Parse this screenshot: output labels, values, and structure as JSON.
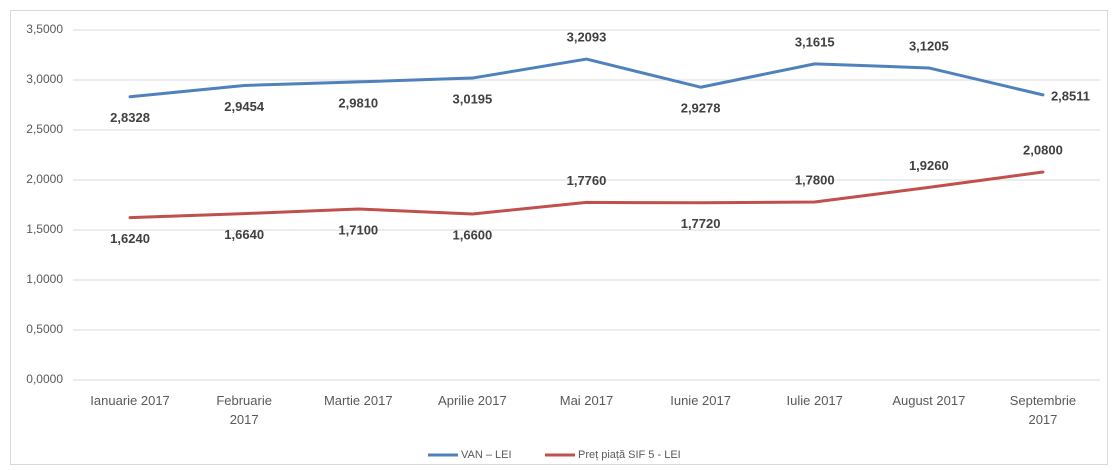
{
  "chart_data": {
    "type": "line",
    "categories": [
      "Ianuarie 2017",
      "Februarie 2017",
      "Martie 2017",
      "Aprilie 2017",
      "Mai 2017",
      "Iunie 2017",
      "Iulie 2017",
      "August 2017",
      "Septembrie 2017"
    ],
    "series": [
      {
        "name": "VAN – LEI",
        "color": "#4f81bd",
        "values": [
          2.8328,
          2.9454,
          2.981,
          3.0195,
          3.2093,
          2.9278,
          3.1615,
          3.1205,
          2.8511
        ],
        "value_labels": [
          "2,8328",
          "2,9454",
          "2,9810",
          "3,0195",
          "3,2093",
          "2,9278",
          "3,1615",
          "3,1205",
          "2,8511"
        ]
      },
      {
        "name": "Preț piață SIF 5 - LEI",
        "color": "#c0504d",
        "values": [
          1.624,
          1.664,
          1.71,
          1.66,
          1.776,
          1.772,
          1.78,
          1.926,
          2.08
        ],
        "value_labels": [
          "1,6240",
          "1,6640",
          "1,7100",
          "1,6600",
          "1,7760",
          "1,7720",
          "1,7800",
          "1,9260",
          "2,0800"
        ]
      }
    ],
    "ylim": [
      0,
      3.5
    ],
    "yticks": [
      {
        "value": 0,
        "label": "0,0000"
      },
      {
        "value": 0.5,
        "label": "0,5000"
      },
      {
        "value": 1,
        "label": "1,0000"
      },
      {
        "value": 1.5,
        "label": "1,5000"
      },
      {
        "value": 2,
        "label": "2,0000"
      },
      {
        "value": 2.5,
        "label": "2,5000"
      },
      {
        "value": 3,
        "label": "3,0000"
      },
      {
        "value": 3.5,
        "label": "3,5000"
      }
    ],
    "grid": true,
    "legend": "bottom"
  }
}
